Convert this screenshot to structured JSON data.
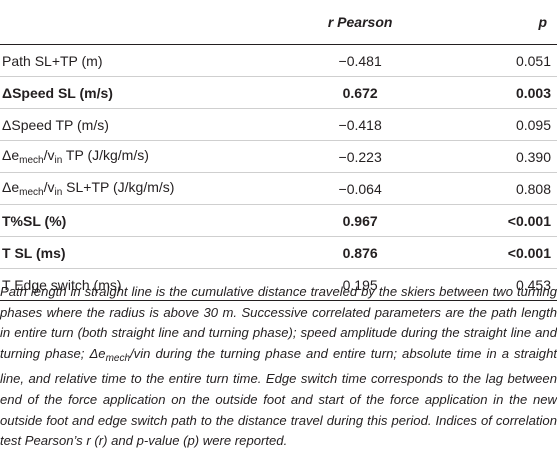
{
  "table": {
    "headers": {
      "param": "",
      "r_prefix": "r",
      "r_rest": " Pearson",
      "p": "p"
    },
    "rows": [
      {
        "label_pre": "Path SL+TP (m)",
        "sub": "",
        "label_post": "",
        "r": "−0.481",
        "p": "0.051",
        "bold": false
      },
      {
        "label_pre": "ΔSpeed SL (m/s)",
        "sub": "",
        "label_post": "",
        "r": "0.672",
        "p": "0.003",
        "bold": true
      },
      {
        "label_pre": "ΔSpeed TP (m/s)",
        "sub": "",
        "label_post": "",
        "r": "−0.418",
        "p": "0.095",
        "bold": false
      },
      {
        "label_pre": "Δe",
        "sub": "mech",
        "label_post": "/v",
        "sub2": "in",
        "label_tail": " TP (J/kg/m/s)",
        "r": "−0.223",
        "p": "0.390",
        "bold": false
      },
      {
        "label_pre": "Δe",
        "sub": "mech",
        "label_post": "/v",
        "sub2": "in",
        "label_tail": " SL+TP (J/kg/m/s)",
        "r": "−0.064",
        "p": "0.808",
        "bold": false
      },
      {
        "label_pre": "T%SL (%)",
        "sub": "",
        "label_post": "",
        "r": "0.967",
        "p": "<0.001",
        "bold": true
      },
      {
        "label_pre": "T SL (ms)",
        "sub": "",
        "label_post": "",
        "r": "0.876",
        "p": "<0.001",
        "bold": true
      },
      {
        "label_pre": "T Edge switch (ms)",
        "sub": "",
        "label_post": "",
        "r": "0.195",
        "p": "0.453",
        "bold": false
      }
    ]
  },
  "note": {
    "part1": "Path length in straight line is the cumulative distance traveled by the skiers between two turning phases where the radius is above 30 m. Successive correlated parameters are the path length in entire turn (both straight line and turning phase); speed amplitude during the straight line and turning phase; Δe",
    "sub": "mech",
    "part2": "/vin during the turning phase and entire turn; absolute time in a straight line, and relative time to the entire turn time. Edge switch time corresponds to the lag between end of the force application on the outside foot and start of the force application in the new outside foot and edge switch path to the distance travel during this period. Indices of correlation test Pearson’s r (r) and p-value (p) were reported."
  }
}
